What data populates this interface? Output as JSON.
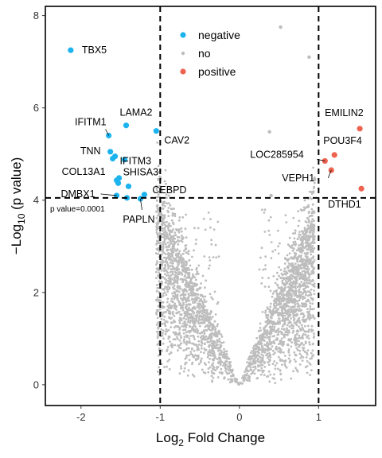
{
  "chart_data": {
    "type": "scatter",
    "title": "",
    "xlabel_base": "Log",
    "xlabel_sub": "2",
    "xlabel_rest": " Fold Change",
    "ylabel_pre": "−Log",
    "ylabel_sub": "10",
    "ylabel_rest": " (p value)",
    "xlim": [
      -2.45,
      1.72
    ],
    "ylim": [
      -0.45,
      8.2
    ],
    "x_ticks": [
      -2,
      -1,
      0,
      1
    ],
    "x_tick_labels": [
      "-2",
      "-1",
      "0",
      "1"
    ],
    "y_ticks": [
      0,
      2,
      4,
      6,
      8
    ],
    "y_tick_labels": [
      "0",
      "2",
      "4",
      "6",
      "8"
    ],
    "thresholds": {
      "x": [
        -1,
        1
      ],
      "y": 4.05
    },
    "threshold_annotation": "p value=0.0001",
    "legend": {
      "placement": "top-center",
      "entries": [
        {
          "key": "negative",
          "label": "negative",
          "color": "#1DB3EE"
        },
        {
          "key": "no",
          "label": "no",
          "color": "#BDBDBD"
        },
        {
          "key": "positive",
          "label": "positive",
          "color": "#EE6350"
        }
      ]
    },
    "series": [
      {
        "name": "negative",
        "color": "#1DB3EE",
        "points": [
          {
            "label": "TBX5",
            "x": -2.13,
            "y": 7.25
          },
          {
            "label": "LAMA2",
            "x": -1.43,
            "y": 5.62
          },
          {
            "label": "CAV2",
            "x": -1.05,
            "y": 5.5
          },
          {
            "label": "IFITM1",
            "x": -1.65,
            "y": 5.4
          },
          {
            "label": "TNN",
            "x": -1.63,
            "y": 5.05
          },
          {
            "label": "IFITM3",
            "x": -1.45,
            "y": 4.88
          },
          {
            "label": "",
            "x": -1.6,
            "y": 4.9
          },
          {
            "label": "SHISA3",
            "x": -1.57,
            "y": 4.95
          },
          {
            "label": "",
            "x": -1.52,
            "y": 4.48
          },
          {
            "label": "COL13A1",
            "x": -1.55,
            "y": 4.43
          },
          {
            "label": "",
            "x": -1.53,
            "y": 4.37
          },
          {
            "label": "",
            "x": -1.4,
            "y": 4.3
          },
          {
            "label": "DMBX1",
            "x": -1.55,
            "y": 4.1
          },
          {
            "label": "",
            "x": -1.42,
            "y": 4.05
          },
          {
            "label": "CEBPD",
            "x": -1.2,
            "y": 4.12
          },
          {
            "label": "PAPLN",
            "x": -1.25,
            "y": 4.03
          }
        ]
      },
      {
        "name": "positive",
        "color": "#EE6350",
        "points": [
          {
            "label": "EMILIN2",
            "x": 1.52,
            "y": 5.55
          },
          {
            "label": "POU3F4",
            "x": 1.2,
            "y": 4.98
          },
          {
            "label": "LOC285954",
            "x": 1.08,
            "y": 4.85
          },
          {
            "label": "VEPH1",
            "x": 1.16,
            "y": 4.65
          },
          {
            "label": "DTHD1",
            "x": 1.54,
            "y": 4.25
          }
        ]
      },
      {
        "name": "no",
        "color": "#BDBDBD",
        "points": [
          {
            "label": "",
            "x": 0.52,
            "y": 7.75
          },
          {
            "label": "",
            "x": 0.88,
            "y": 7.1
          },
          {
            "label": "",
            "x": 0.38,
            "y": 5.48
          },
          {
            "label": "",
            "x": 0.95,
            "y": 4.45
          },
          {
            "label": "",
            "x": 0.4,
            "y": 4.1
          },
          {
            "label": "",
            "x": -0.95,
            "y": 3.95
          }
        ]
      }
    ]
  }
}
